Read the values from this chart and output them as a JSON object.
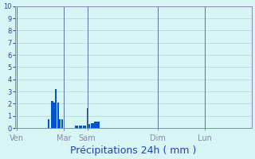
{
  "title": "Précipitations 24h ( mm )",
  "background_color": "#d8f5f5",
  "bar_color": "#0055cc",
  "bar_color2": "#1199ee",
  "ylim": [
    0,
    10
  ],
  "yticks": [
    0,
    1,
    2,
    3,
    4,
    5,
    6,
    7,
    8,
    9,
    10
  ],
  "day_labels": [
    "Ven",
    "Mar",
    "Sam",
    "Dim",
    "Lun"
  ],
  "day_positions": [
    0,
    24,
    36,
    72,
    96
  ],
  "num_bars": 120,
  "bar_values": [
    0,
    0,
    0,
    0,
    0,
    0,
    0,
    0,
    0,
    0,
    0,
    0,
    0,
    0,
    0,
    0,
    0.7,
    0,
    2.2,
    2.1,
    3.2,
    2.1,
    0.7,
    0.7,
    0,
    0,
    0,
    0,
    0,
    0,
    0.2,
    0.2,
    0.2,
    0.2,
    0.2,
    0.2,
    1.6,
    0.3,
    0.4,
    0.4,
    0.5,
    0.5,
    0.5,
    0,
    0,
    0,
    0,
    0,
    0,
    0,
    0,
    0,
    0,
    0,
    0,
    0,
    0,
    0,
    0,
    0,
    0,
    0,
    0,
    0,
    0,
    0,
    0,
    0,
    0,
    0,
    0,
    0,
    0,
    0,
    0,
    0,
    0,
    0,
    0,
    0,
    0,
    0,
    0,
    0,
    0,
    0,
    0,
    0,
    0,
    0,
    0,
    0,
    0,
    0,
    0,
    0,
    0,
    0,
    0,
    0,
    0,
    0,
    0,
    0,
    0,
    0,
    0,
    0,
    0,
    0,
    0,
    0,
    0,
    0,
    0,
    0,
    0,
    0,
    0,
    0,
    0,
    0,
    0,
    0,
    0,
    0,
    0,
    0,
    0,
    0,
    0
  ],
  "grid_color": "#b0d4d4",
  "axis_color": "#8888aa",
  "tick_color": "#2244aa",
  "label_color": "#2244aa",
  "title_color": "#2244aa",
  "title_fontsize": 9
}
